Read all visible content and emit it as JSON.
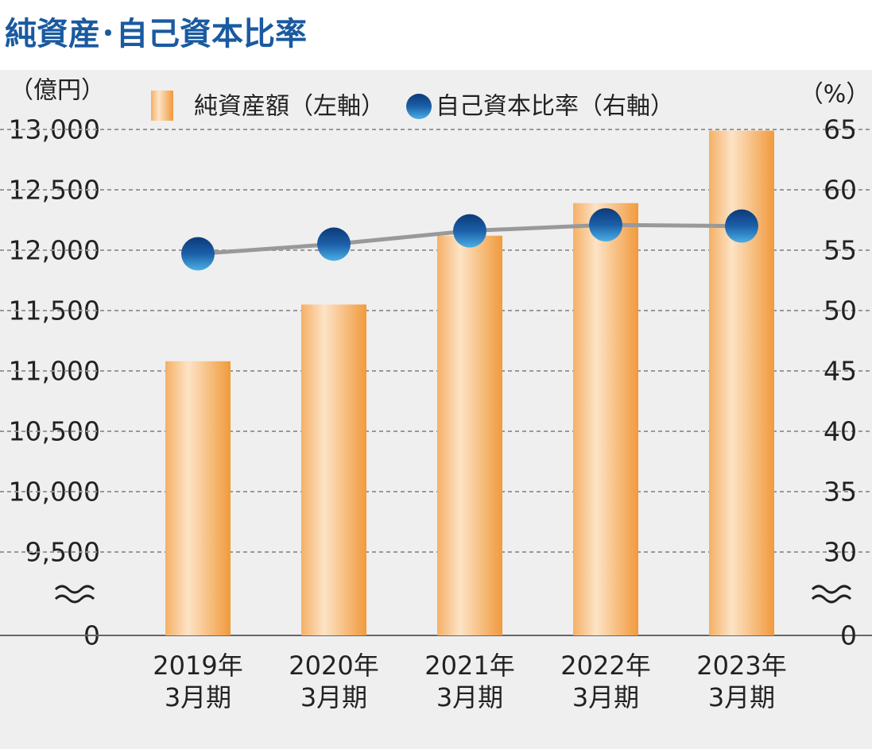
{
  "chart_data": {
    "type": "bar_line",
    "title": "純資産･自己資本比率",
    "y_label": "（億円）",
    "y2_label": "（%）",
    "categories": [
      "2019年\n3月期",
      "2020年\n3月期",
      "2021年\n3月期",
      "2022年\n3月期",
      "2023年\n3月期"
    ],
    "series": [
      {
        "name": "純資産額（左軸）",
        "type": "bar",
        "color": "#f3a24a",
        "values": [
          11080,
          11550,
          12120,
          12390,
          12990
        ]
      },
      {
        "name": "自己資本比率（右軸）",
        "type": "line",
        "axis": "y2",
        "color": "#1b5fa8",
        "line_color": "#999999",
        "values": [
          54.7,
          55.5,
          56.6,
          57.1,
          57.0
        ]
      }
    ],
    "ylim": [
      0,
      13000
    ],
    "yticks": [
      0,
      {
        "value": 9500,
        "label": "9,500"
      },
      {
        "value": 10000,
        "label": "10,000"
      },
      {
        "value": 10500,
        "label": "10,500"
      },
      {
        "value": 11000,
        "label": "11,000"
      },
      {
        "value": 11500,
        "label": "11,500"
      },
      {
        "value": 12000,
        "label": "12,000"
      },
      {
        "value": 12500,
        "label": "12,500"
      },
      {
        "value": 13000,
        "label": "13,000"
      }
    ],
    "y2lim": [
      0,
      65
    ],
    "y2ticks": [
      0,
      30,
      35,
      40,
      45,
      50,
      55,
      60,
      65
    ],
    "axis_break": true,
    "grid": true
  }
}
